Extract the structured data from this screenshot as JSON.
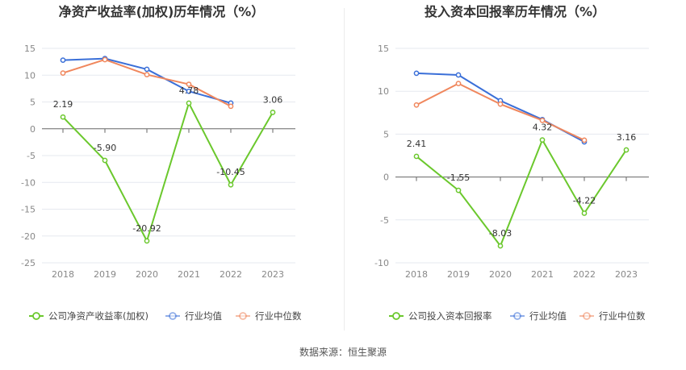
{
  "source_label": "数据来源：恒生聚源",
  "colors": {
    "company": "#6bc82d",
    "avg": "#3a6fd8",
    "median": "#f0875d",
    "grid": "#e6e9ef",
    "axis": "#666666",
    "tick": "#888888"
  },
  "chart_data": [
    {
      "type": "line",
      "title": "净资产收益率(加权)历年情况（%）",
      "categories": [
        "2018",
        "2019",
        "2020",
        "2021",
        "2022",
        "2023"
      ],
      "ylim": [
        -25,
        15
      ],
      "yticks": [
        15,
        10,
        5,
        0,
        -5,
        -10,
        -15,
        -20,
        -25
      ],
      "series": [
        {
          "name": "公司净资产收益率(加权)",
          "key": "company",
          "values": [
            2.19,
            -5.9,
            -20.92,
            4.78,
            -10.45,
            3.06
          ],
          "labels": [
            "2.19",
            "-5.90",
            "-20.92",
            "4.78",
            "-10.45",
            "3.06"
          ]
        },
        {
          "name": "行业均值",
          "key": "avg",
          "values": [
            12.8,
            13.1,
            11.1,
            7.0,
            4.8,
            null
          ]
        },
        {
          "name": "行业中位数",
          "key": "median",
          "values": [
            10.4,
            12.9,
            10.1,
            8.3,
            4.2,
            null
          ]
        }
      ]
    },
    {
      "type": "line",
      "title": "投入资本回报率历年情况（%）",
      "categories": [
        "2018",
        "2019",
        "2020",
        "2021",
        "2022",
        "2023"
      ],
      "ylim": [
        -10,
        15
      ],
      "yticks": [
        15,
        10,
        5,
        0,
        -5,
        -10
      ],
      "series": [
        {
          "name": "公司投入资本回报率",
          "key": "company",
          "values": [
            2.41,
            -1.55,
            -8.03,
            4.32,
            -4.22,
            3.16
          ],
          "labels": [
            "2.41",
            "-1.55",
            "-8.03",
            "4.32",
            "-4.22",
            "3.16"
          ]
        },
        {
          "name": "行业均值",
          "key": "avg",
          "values": [
            12.1,
            11.9,
            8.9,
            6.7,
            4.1,
            null
          ]
        },
        {
          "name": "行业中位数",
          "key": "median",
          "values": [
            8.4,
            10.9,
            8.5,
            6.6,
            4.3,
            null
          ]
        }
      ]
    }
  ]
}
